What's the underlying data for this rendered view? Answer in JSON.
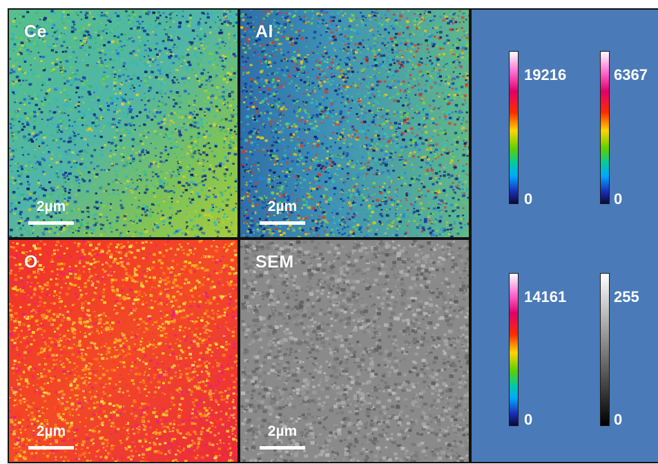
{
  "panels": [
    {
      "id": "ce",
      "label": "Ce",
      "scalebar": "2µm"
    },
    {
      "id": "al",
      "label": "Al",
      "scalebar": "2µm"
    },
    {
      "id": "o",
      "label": "O",
      "scalebar": "2µm"
    },
    {
      "id": "sem",
      "label": "SEM",
      "scalebar": "2µm"
    }
  ],
  "colorbars": [
    {
      "for": "ce",
      "max": "19216",
      "min": "0",
      "colormap": "rainbow"
    },
    {
      "for": "al",
      "max": "6367",
      "min": "0",
      "colormap": "rainbow"
    },
    {
      "for": "o",
      "max": "14161",
      "min": "0",
      "colormap": "rainbow"
    },
    {
      "for": "sem",
      "max": "255",
      "min": "0",
      "colormap": "grayscale"
    }
  ],
  "colors": {
    "legend_background": "#4a7ab8",
    "frame": "#111111",
    "ce_base": "#5cbf6e",
    "al_base": "#3f9ab0",
    "o_base": "#f02a2a",
    "sem_base": "#8a8a8a"
  }
}
